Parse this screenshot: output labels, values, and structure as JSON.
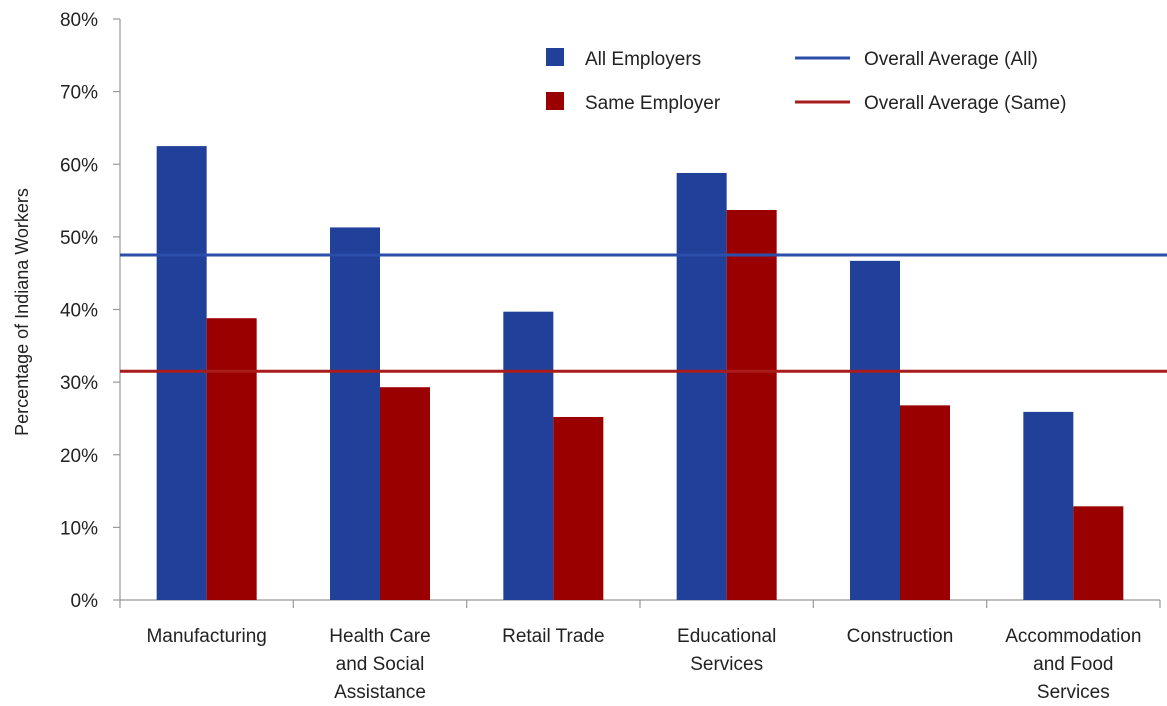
{
  "chart_data": {
    "type": "bar",
    "categories": [
      [
        "Manufacturing"
      ],
      [
        "Health Care",
        "and Social",
        "Assistance"
      ],
      [
        "Retail Trade"
      ],
      [
        "Educational",
        "Services"
      ],
      [
        "Construction"
      ],
      [
        "Accommodation",
        "and Food",
        "Services"
      ]
    ],
    "series": [
      {
        "name": "All Employers",
        "color": "#21409a",
        "values": [
          62.5,
          51.3,
          39.7,
          58.8,
          46.7,
          25.9
        ]
      },
      {
        "name": "Same Employer",
        "color": "#9a0000",
        "values": [
          38.8,
          29.3,
          25.2,
          53.7,
          26.8,
          12.9
        ]
      }
    ],
    "reference_lines": [
      {
        "name": "Overall Average (All)",
        "color": "#2b4ea8",
        "value": 47.5
      },
      {
        "name": "Overall Average (Same)",
        "color": "#a81c1c",
        "value": 31.5
      }
    ],
    "ylabel": "Percentage of Indiana Workers",
    "xlabel": "",
    "ylim": [
      0,
      80
    ],
    "yticks": [
      "0%",
      "10%",
      "20%",
      "30%",
      "40%",
      "50%",
      "60%",
      "70%",
      "80%"
    ],
    "grid": false,
    "legend_position": "top-right"
  }
}
